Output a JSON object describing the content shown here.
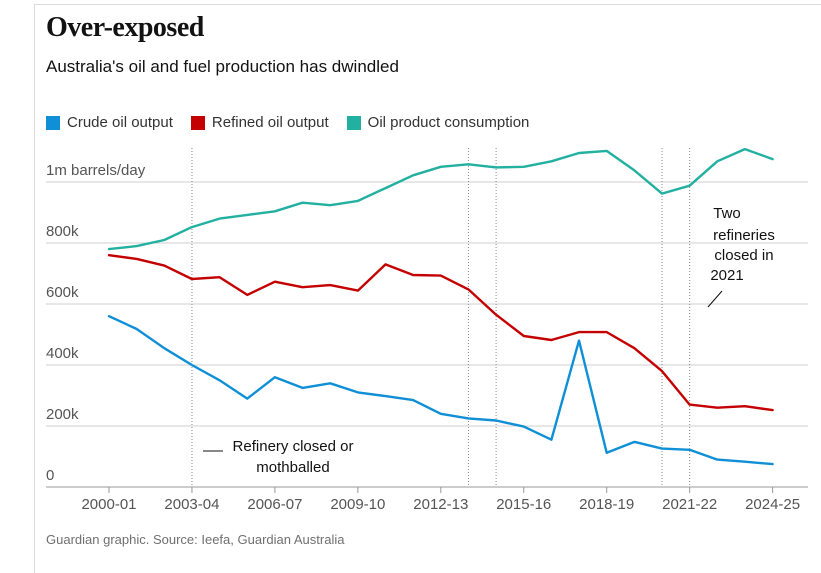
{
  "title": "Over-exposed",
  "subtitle": "Australia's oil and fuel production has dwindled",
  "legend": [
    {
      "label": "Crude oil output",
      "color": "#0f8fd6"
    },
    {
      "label": "Refined oil output",
      "color": "#c40000"
    },
    {
      "label": "Oil product consumption",
      "color": "#22b0a0"
    }
  ],
  "source": "Guardian graphic. Source: Ieefa, Guardian Australia",
  "annotations": {
    "refinery_closed": [
      "Refinery closed or",
      "mothballed"
    ],
    "two_refineries": [
      "Two",
      "refineries",
      "closed in",
      "2021"
    ]
  },
  "chart_data": {
    "type": "line",
    "title": "Over-exposed",
    "xlabel": "",
    "ylabel": "",
    "ylim": [
      0,
      1100000
    ],
    "y_ticks": [
      {
        "value": 0,
        "label": "0"
      },
      {
        "value": 200000,
        "label": "200k"
      },
      {
        "value": 400000,
        "label": "400k"
      },
      {
        "value": 600000,
        "label": "600k"
      },
      {
        "value": 800000,
        "label": "800k"
      },
      {
        "value": 1000000,
        "label": "1m barrels/day"
      }
    ],
    "x": [
      "2000-01",
      "2001-02",
      "2002-03",
      "2003-04",
      "2004-05",
      "2005-06",
      "2006-07",
      "2007-08",
      "2008-09",
      "2009-10",
      "2010-11",
      "2011-12",
      "2012-13",
      "2013-14",
      "2014-15",
      "2015-16",
      "2016-17",
      "2017-18",
      "2018-19",
      "2019-20",
      "2020-21",
      "2021-22",
      "2022-23",
      "2023-24",
      "2024-25"
    ],
    "x_tick_labels": [
      "2000-01",
      "2003-04",
      "2006-07",
      "2009-10",
      "2012-13",
      "2015-16",
      "2018-19",
      "2021-22",
      "2024-25"
    ],
    "closure_markers": [
      "2003-04",
      "2013-14",
      "2014-15",
      "2020-21",
      "2021-22"
    ],
    "series": [
      {
        "name": "Crude oil output",
        "color": "#0f8fd6",
        "values": [
          560000,
          518000,
          455000,
          400000,
          350000,
          290000,
          360000,
          325000,
          340000,
          310000,
          298000,
          285000,
          240000,
          225000,
          218000,
          198000,
          155000,
          480000,
          112000,
          148000,
          126000,
          122000,
          90000,
          83000,
          75000
        ]
      },
      {
        "name": "Refined oil output",
        "color": "#c40000",
        "values": [
          760000,
          748000,
          726000,
          682000,
          688000,
          630000,
          673000,
          655000,
          662000,
          644000,
          730000,
          695000,
          693000,
          648000,
          565000,
          495000,
          482000,
          508000,
          508000,
          455000,
          380000,
          270000,
          260000,
          265000,
          252000
        ]
      },
      {
        "name": "Oil product consumption",
        "color": "#22b0a0",
        "values": [
          780000,
          790000,
          810000,
          852000,
          880000,
          892000,
          904000,
          932000,
          924000,
          938000,
          980000,
          1022000,
          1050000,
          1058000,
          1048000,
          1050000,
          1068000,
          1095000,
          1102000,
          1038000,
          962000,
          988000,
          1068000,
          1108000,
          1075000
        ]
      }
    ]
  }
}
